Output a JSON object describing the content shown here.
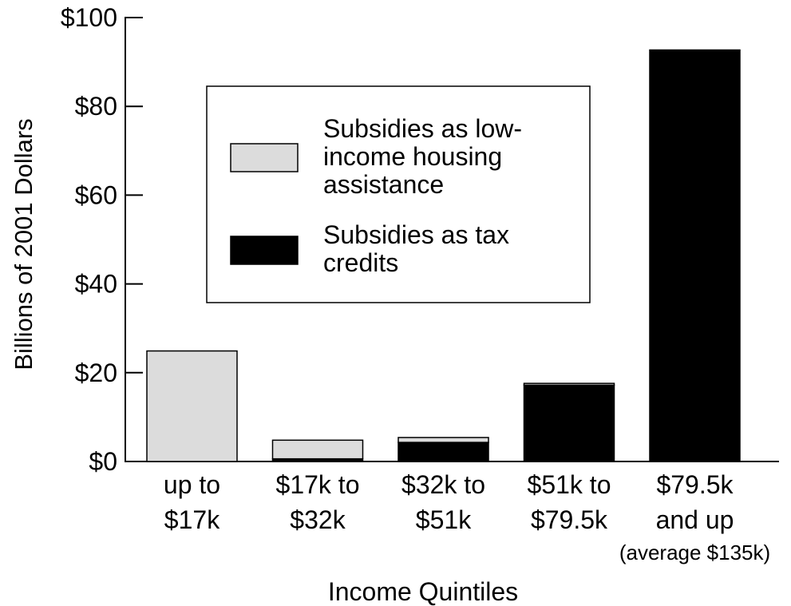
{
  "chart_data": {
    "type": "bar",
    "stacked": true,
    "title": "",
    "xlabel": "Income Quintiles",
    "ylabel": "Billions of 2001 Dollars",
    "ylim": [
      0,
      100
    ],
    "yticks": [
      0,
      20,
      40,
      60,
      80,
      100
    ],
    "ytick_labels": [
      "$0",
      "$20",
      "$40",
      "$60",
      "$80",
      "$100"
    ],
    "categories": [
      [
        "up to",
        "$17k"
      ],
      [
        "$17k to",
        "$32k"
      ],
      [
        "$32k to",
        "$51k"
      ],
      [
        "$51k to",
        "$79.5k"
      ],
      [
        "$79.5k",
        "and up"
      ]
    ],
    "category_notes": [
      "",
      "",
      "",
      "",
      "(average $135k)"
    ],
    "series": [
      {
        "name": "Subsidies as tax credits",
        "color": "#000000",
        "values": [
          0,
          0.6,
          4.3,
          17.2,
          92.7
        ]
      },
      {
        "name": "Subsidies as low-income housing assistance",
        "color": "#dcdcdc",
        "values": [
          24.9,
          4.2,
          1.1,
          0.4,
          0
        ]
      }
    ],
    "legend": {
      "position": "upper-center",
      "entries": [
        {
          "lines": [
            "Subsidies as low-",
            "income housing",
            "assistance"
          ],
          "color": "#dcdcdc"
        },
        {
          "lines": [
            "Subsidies as tax",
            "credits"
          ],
          "color": "#000000"
        }
      ]
    },
    "grid": false
  }
}
